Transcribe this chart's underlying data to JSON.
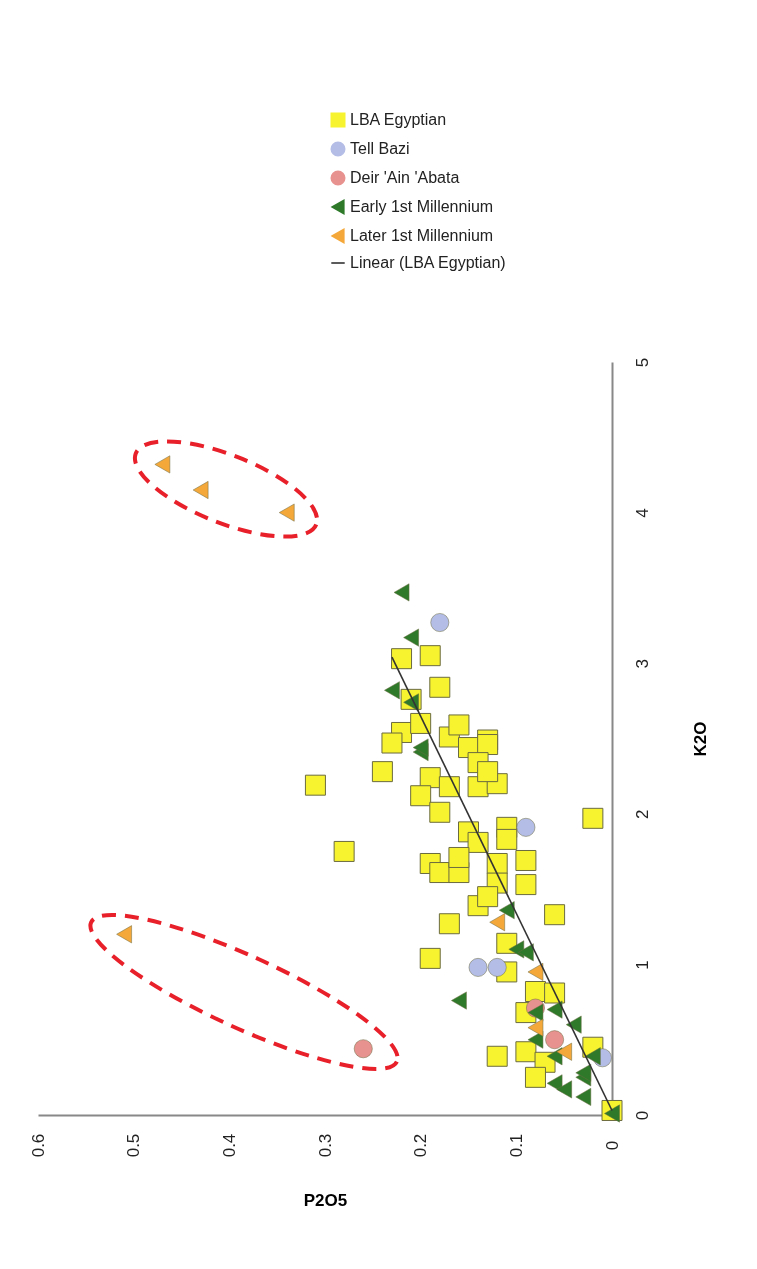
{
  "chart_data": {
    "type": "scatter",
    "xlabel": "P2O5",
    "ylabel": "K2O",
    "xlim": [
      0.6,
      0
    ],
    "xticks": [
      0.6,
      0.5,
      0.4,
      0.3,
      0.2,
      0.1,
      0
    ],
    "ylim": [
      0,
      5
    ],
    "yticks": [
      0,
      1,
      2,
      3,
      4,
      5
    ],
    "grid": false,
    "legend": "right",
    "series": [
      {
        "name": "LBA Egyptian",
        "color": "#f7f32e",
        "marker": "square",
        "values": [
          3.03,
          3.05,
          2.84,
          2.76,
          2.54,
          2.47,
          2.6,
          2.51,
          2.59,
          2.49,
          2.44,
          2.46,
          2.28,
          2.24,
          2.12,
          2.18,
          2.18,
          2.2,
          2.34,
          2.28,
          2.01,
          1.88,
          1.81,
          1.91,
          1.83,
          1.69,
          1.67,
          1.61,
          1.61,
          1.71,
          1.67,
          1.54,
          1.53,
          1.39,
          1.45,
          1.27,
          1.33,
          1.97,
          1.14,
          2.19,
          1.75,
          1.04,
          0.95,
          0.82,
          0.81,
          0.68,
          0.39,
          0.42,
          0.35,
          0.25,
          0.45,
          0.03
        ],
        "x": [
          0.22,
          0.19,
          0.18,
          0.21,
          0.22,
          0.23,
          0.2,
          0.17,
          0.16,
          0.13,
          0.15,
          0.13,
          0.24,
          0.19,
          0.2,
          0.17,
          0.14,
          0.12,
          0.14,
          0.13,
          0.18,
          0.15,
          0.14,
          0.11,
          0.11,
          0.09,
          0.19,
          0.18,
          0.16,
          0.16,
          0.12,
          0.12,
          0.09,
          0.14,
          0.13,
          0.17,
          0.06,
          0.02,
          0.11,
          0.31,
          0.28,
          0.19,
          0.11,
          0.08,
          0.06,
          0.09,
          0.12,
          0.09,
          0.07,
          0.08,
          0.02,
          0.0
        ]
      },
      {
        "name": "Tell Bazi",
        "color": "#b4bde6",
        "marker": "circle",
        "values": [
          3.27,
          1.91,
          0.98,
          0.98,
          0.38
        ],
        "x": [
          0.18,
          0.09,
          0.14,
          0.12,
          0.01
        ]
      },
      {
        "name": "Deir 'Ain 'Abata",
        "color": "#e8928f",
        "marker": "circle",
        "values": [
          0.44,
          0.71,
          0.5
        ],
        "x": [
          0.26,
          0.08,
          0.06
        ]
      },
      {
        "name": "Early 1st Millennium",
        "color": "#2e7a2a",
        "marker": "triangle",
        "values": [
          0.01,
          0.12,
          0.21,
          0.25,
          0.6,
          0.7,
          0.68,
          0.76,
          0.39,
          0.39,
          0.5,
          1.1,
          1.08,
          0.28,
          0.17,
          1.36,
          2.41,
          3.47,
          3.17,
          2.74,
          2.44,
          2.82
        ],
        "x": [
          0.0,
          0.03,
          0.06,
          0.03,
          0.04,
          0.06,
          0.08,
          0.16,
          0.06,
          0.02,
          0.08,
          0.1,
          0.09,
          0.03,
          0.05,
          0.11,
          0.2,
          0.22,
          0.21,
          0.21,
          0.2,
          0.23
        ]
      },
      {
        "name": "Later 1st Millennium",
        "color": "#f5a83a",
        "marker": "triangle",
        "values": [
          1.2,
          4.32,
          4.15,
          4.0,
          1.28,
          0.95,
          0.58,
          0.42
        ],
        "x": [
          0.51,
          0.47,
          0.43,
          0.34,
          0.12,
          0.08,
          0.08,
          0.05
        ]
      },
      {
        "name": "Linear (LBA Egyptian)",
        "color": "#333333",
        "type": "line",
        "marker": "none",
        "values": [
          0.03,
          3.04
        ],
        "x": [
          0.0,
          0.23
        ]
      }
    ]
  }
}
